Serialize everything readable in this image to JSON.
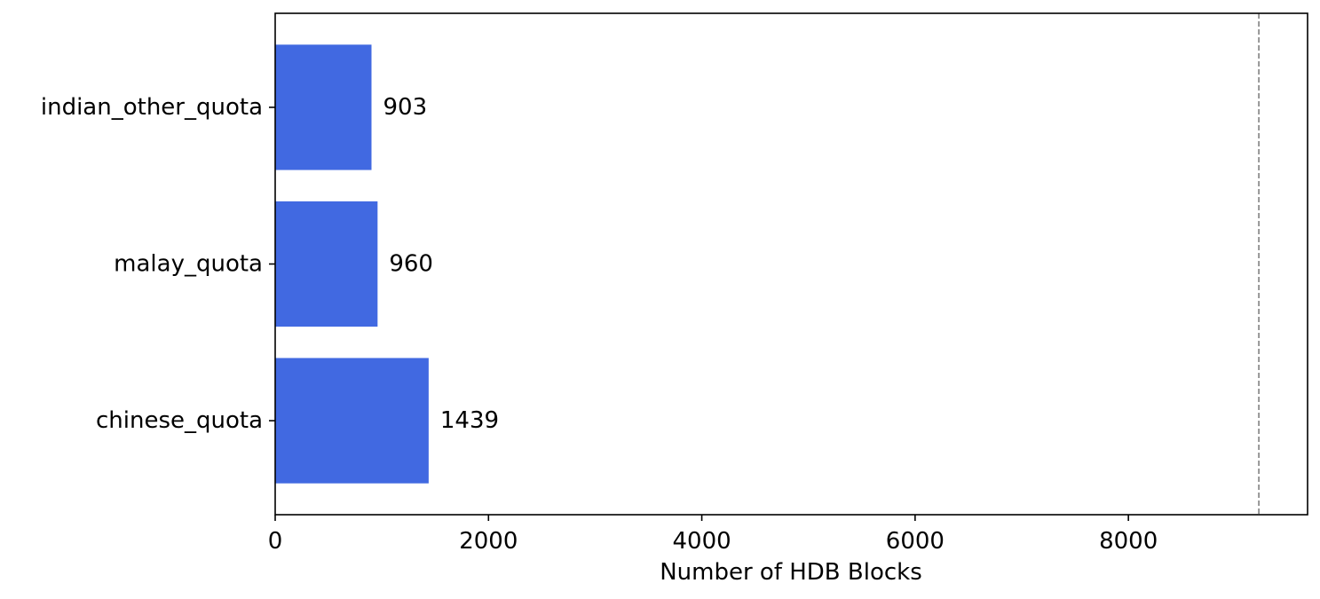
{
  "chart_data": {
    "type": "bar",
    "orientation": "horizontal",
    "categories": [
      "chinese_quota",
      "malay_quota",
      "indian_other_quota"
    ],
    "values": [
      1439,
      960,
      903
    ],
    "data_labels": [
      "1439",
      "960",
      "903"
    ],
    "xlabel": "Number of HDB Blocks",
    "ylabel": "",
    "title": "",
    "xlim": [
      0,
      9680
    ],
    "xticks": [
      0,
      2000,
      4000,
      6000,
      8000
    ],
    "xtick_labels": [
      "0",
      "2000",
      "4000",
      "6000",
      "8000"
    ],
    "reference_line": {
      "x": 9223,
      "style": "dashed"
    },
    "grid": false,
    "bar_color": "#4169E1",
    "reference_line_color": "#808080"
  }
}
